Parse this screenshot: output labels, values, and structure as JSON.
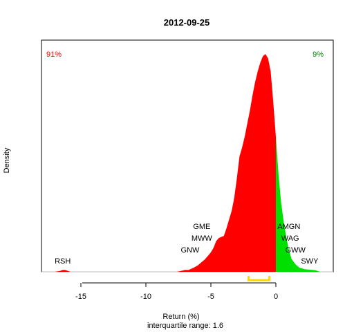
{
  "chart_data": {
    "type": "area",
    "title": "2012-09-25",
    "xlabel": "Return (%)",
    "ylabel": "Density",
    "subtitle": "interquartile range: 1.6",
    "xlim": [
      -18,
      3.6
    ],
    "x_ticks": [
      -15,
      -10,
      -5,
      0
    ],
    "tick_labels": [
      "-15",
      "-10",
      "-5",
      "0"
    ],
    "negative_share": "91%",
    "positive_share": "9%",
    "colors": {
      "negative": "#ff0000",
      "positive": "#00e000",
      "iqr": "#ffd700",
      "baseline": "#bebebe"
    },
    "density": {
      "x": [
        -17.0,
        -16.6,
        -16.4,
        -16.2,
        -16.0,
        -15.8,
        -7.6,
        -7.3,
        -7.0,
        -6.7,
        -6.3,
        -6.0,
        -5.7,
        -5.5,
        -5.2,
        -5.0,
        -4.8,
        -4.6,
        -4.4,
        -4.2,
        -4.0,
        -3.8,
        -3.6,
        -3.4,
        -3.2,
        -3.0,
        -2.8,
        -2.6,
        -2.4,
        -2.2,
        -2.0,
        -1.8,
        -1.6,
        -1.4,
        -1.2,
        -1.0,
        -0.8,
        -0.6,
        -0.4,
        -0.2,
        0.0,
        0.2,
        0.4,
        0.6,
        0.8,
        1.0,
        1.2,
        1.5,
        1.8,
        2.2,
        2.6,
        3.0,
        3.4
      ],
      "y": [
        0,
        0.004,
        0.009,
        0.009,
        0.004,
        0,
        0,
        0.004,
        0.009,
        0.009,
        0.02,
        0.03,
        0.045,
        0.055,
        0.075,
        0.09,
        0.11,
        0.14,
        0.155,
        0.16,
        0.165,
        0.2,
        0.24,
        0.28,
        0.34,
        0.43,
        0.53,
        0.57,
        0.62,
        0.68,
        0.74,
        0.81,
        0.87,
        0.92,
        0.96,
        0.99,
        1.0,
        0.98,
        0.92,
        0.78,
        0.62,
        0.45,
        0.32,
        0.23,
        0.16,
        0.1,
        0.06,
        0.035,
        0.02,
        0.012,
        0.01,
        0.008,
        0
      ],
      "ylim": [
        0,
        1.05
      ]
    },
    "iqr": [
      -2.1,
      -0.5
    ],
    "annotations": [
      {
        "text": "RSH",
        "x": -16.4,
        "level": 0
      },
      {
        "text": "GNW",
        "x": -6.6,
        "level": 1
      },
      {
        "text": "MWW",
        "x": -5.7,
        "level": 2
      },
      {
        "text": "GME",
        "x": -5.7,
        "level": 3
      },
      {
        "text": "AMGN",
        "x": 1.0,
        "level": 3
      },
      {
        "text": "WAG",
        "x": 1.1,
        "level": 2
      },
      {
        "text": "GWW",
        "x": 1.5,
        "level": 1
      },
      {
        "text": "SWY",
        "x": 2.6,
        "level": 0
      }
    ]
  }
}
